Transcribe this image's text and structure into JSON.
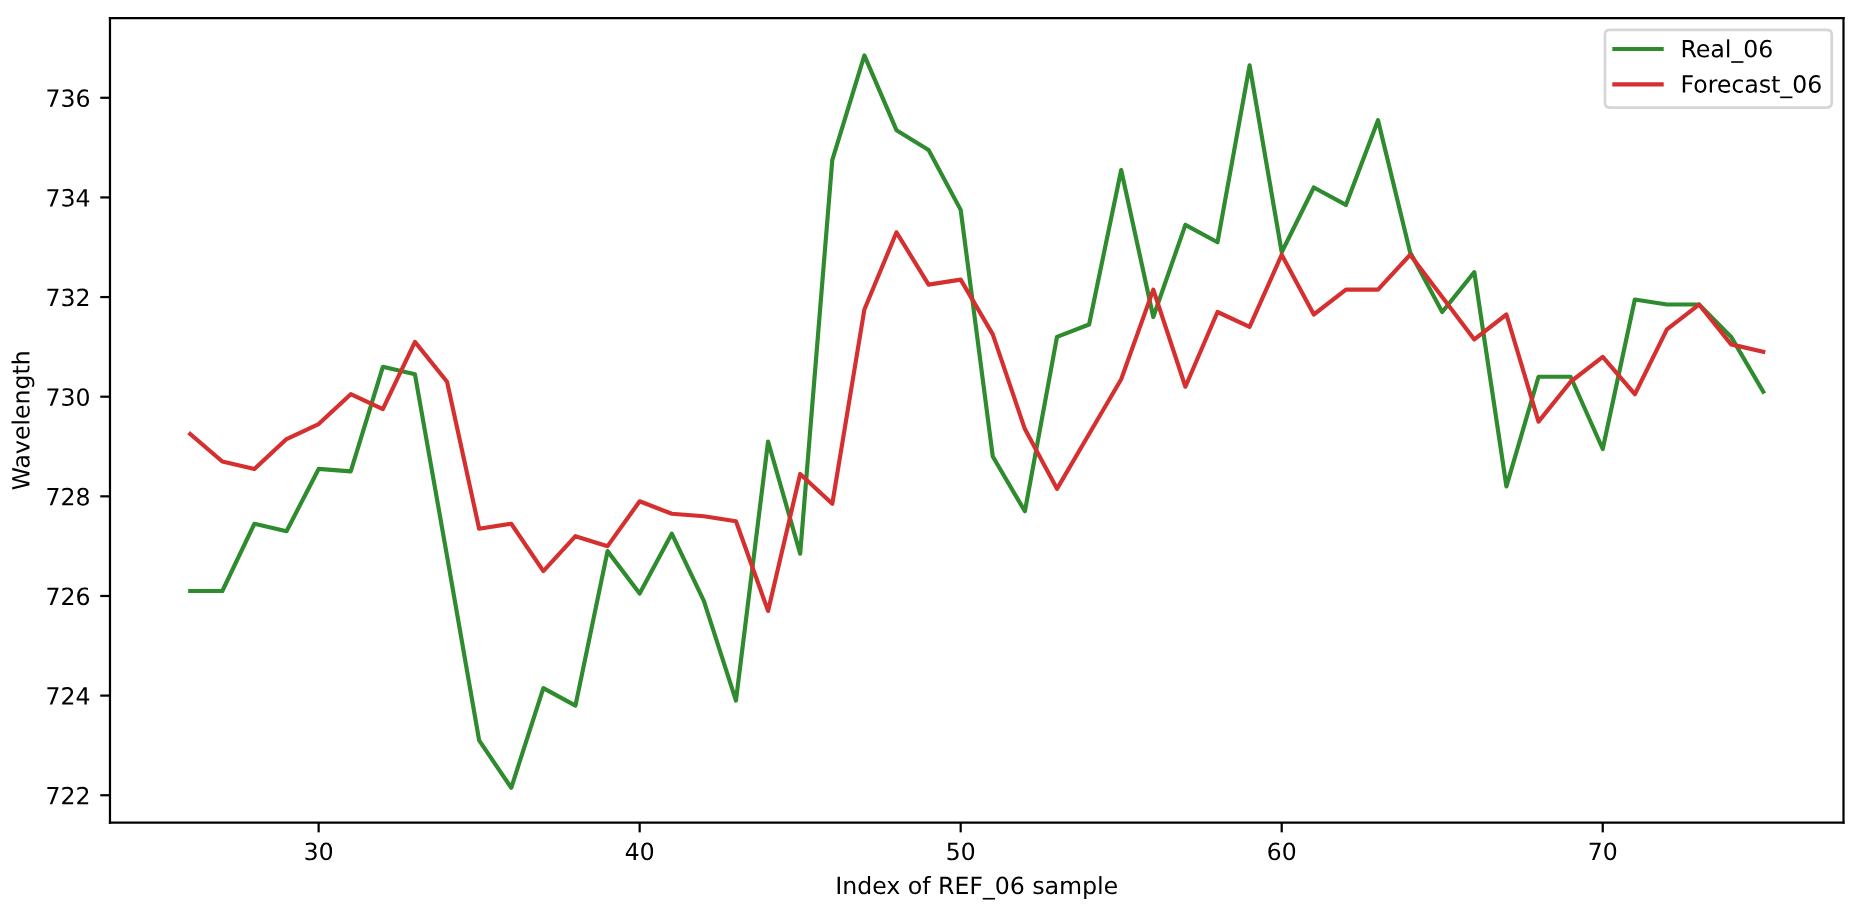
{
  "chart_data": {
    "type": "line",
    "xlabel": "Index of REF_06 sample",
    "ylabel": "Wavelength",
    "x": [
      26,
      27,
      28,
      29,
      30,
      31,
      32,
      33,
      34,
      35,
      36,
      37,
      38,
      39,
      40,
      41,
      42,
      43,
      44,
      45,
      46,
      47,
      48,
      49,
      50,
      51,
      52,
      53,
      54,
      55,
      56,
      57,
      58,
      59,
      60,
      61,
      62,
      63,
      64,
      65,
      66,
      67,
      68,
      69,
      70,
      71,
      72,
      73,
      74,
      75
    ],
    "series": [
      {
        "name": "Real_06",
        "color": "#2e8b2e",
        "values": [
          726.1,
          726.1,
          727.45,
          727.3,
          728.55,
          728.5,
          730.6,
          730.45,
          726.8,
          723.1,
          722.15,
          724.15,
          723.8,
          726.9,
          726.05,
          727.25,
          725.9,
          723.9,
          729.1,
          726.85,
          734.75,
          736.85,
          735.35,
          734.95,
          733.75,
          728.8,
          727.7,
          731.2,
          731.45,
          734.55,
          731.6,
          733.45,
          733.1,
          736.65,
          732.9,
          734.2,
          733.85,
          735.55,
          732.9,
          731.7,
          732.5,
          728.2,
          730.4,
          730.4,
          728.95,
          731.95,
          731.85,
          731.85,
          731.2,
          730.1
        ]
      },
      {
        "name": "Forecast_06",
        "color": "#d62f2f",
        "values": [
          729.25,
          728.7,
          728.55,
          729.15,
          729.45,
          730.05,
          729.75,
          731.1,
          730.3,
          727.35,
          727.45,
          726.5,
          727.2,
          727.0,
          727.9,
          727.65,
          727.6,
          727.5,
          725.7,
          728.45,
          727.85,
          731.75,
          733.3,
          732.25,
          732.35,
          731.25,
          729.35,
          728.15,
          729.25,
          730.35,
          732.15,
          730.2,
          731.7,
          731.4,
          732.85,
          731.65,
          732.15,
          732.15,
          732.85,
          732.0,
          731.15,
          731.65,
          729.5,
          730.3,
          730.8,
          730.05,
          731.35,
          731.85,
          731.05,
          730.9
        ]
      }
    ],
    "xlim": [
      23.5,
      77.5
    ],
    "xticks": [
      30,
      40,
      50,
      60,
      70
    ],
    "ylim": [
      721.45,
      737.6
    ],
    "yticks": [
      722,
      724,
      726,
      728,
      730,
      732,
      734,
      736
    ],
    "grid": false,
    "legend": "top right"
  }
}
